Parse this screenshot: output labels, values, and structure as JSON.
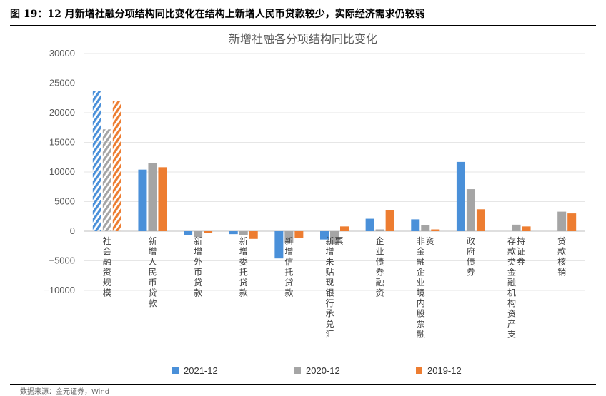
{
  "figure": {
    "title": "图 19：12 月新增社融分项结构同比变化在结构上新增人民币贷款较少，实际经济需求仍较弱",
    "source": "数据来源：金元证券，Wind"
  },
  "chart_data": {
    "type": "bar",
    "title": "新增社融各分项结构同比变化",
    "xlabel": "",
    "ylabel": "",
    "ylim": [
      -10000,
      30000
    ],
    "yticks": [
      -10000,
      -5000,
      0,
      5000,
      10000,
      15000,
      20000,
      25000,
      30000
    ],
    "ytick_labels": [
      "−10000",
      "−5000",
      "0",
      "5000",
      "10000",
      "15000",
      "20000",
      "25000",
      "30000"
    ],
    "grid": true,
    "legend_position": "bottom",
    "categories": [
      "社会融资规模",
      "新增人民币贷款",
      "新增外币贷款",
      "新增委托贷款",
      "新增信托贷款",
      "新增未贴现银行承兑汇票",
      "企业债券融资",
      "非金融企业境内股票融资",
      "政府债券",
      "存款类金融机构资产支持证券",
      "贷款核销"
    ],
    "category_lines": [
      [
        "社会融资规模"
      ],
      [
        "新增人民币贷款"
      ],
      [
        "新增外币贷款"
      ],
      [
        "新增委托贷款"
      ],
      [
        "新增信托贷款"
      ],
      [
        "新增未贴现银行承兑汇",
        "票"
      ],
      [
        "企业债券融资"
      ],
      [
        "非金融企业境内股票融",
        "资"
      ],
      [
        "政府债券"
      ],
      [
        "存款类金融机构资产支",
        "持证券"
      ],
      [
        "贷款核销"
      ]
    ],
    "series": [
      {
        "name": "2021-12",
        "color": "#4a90d9",
        "values": [
          23700,
          10400,
          -700,
          -500,
          -4600,
          -1400,
          2100,
          2000,
          11700,
          0,
          0
        ]
      },
      {
        "name": "2020-12",
        "color": "#a5a5a5",
        "values": [
          17200,
          11500,
          -1000,
          -600,
          -2000,
          -2200,
          300,
          1000,
          7100,
          1100,
          3300
        ]
      },
      {
        "name": "2019-12",
        "color": "#ed7d31",
        "values": [
          22000,
          10800,
          -300,
          -1300,
          -1100,
          800,
          3600,
          300,
          3700,
          800,
          3000
        ]
      }
    ],
    "hatched_category_index": 0
  }
}
